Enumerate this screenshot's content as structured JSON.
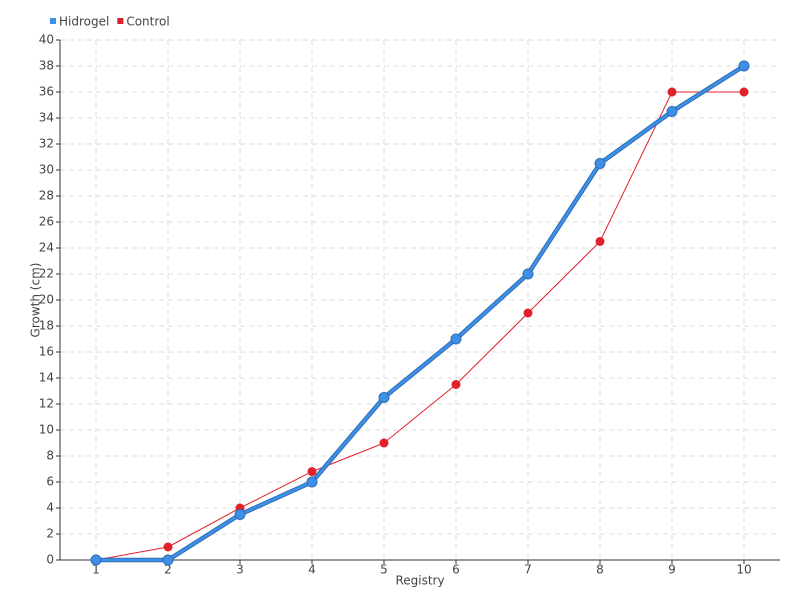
{
  "chart_data": {
    "type": "line",
    "x_label": "Registry",
    "y_label": "Growth (cm)",
    "categories": [
      "1",
      "2",
      "3",
      "4",
      "5",
      "6",
      "7",
      "8",
      "9",
      "10"
    ],
    "series": [
      {
        "name": "Hidrogel",
        "color": "#3d8fe8",
        "values": [
          0,
          0,
          3.5,
          6,
          12.5,
          17,
          22,
          30.5,
          34.5,
          38
        ]
      },
      {
        "name": "Control",
        "color": "#e0202a",
        "values": [
          0,
          1,
          4,
          6.8,
          9,
          13.5,
          19,
          24.5,
          36,
          36
        ]
      }
    ],
    "ylim": [
      0,
      40
    ],
    "yticks": [
      0,
      2,
      4,
      6,
      8,
      10,
      12,
      14,
      16,
      18,
      20,
      22,
      24,
      26,
      28,
      30,
      32,
      34,
      36,
      38,
      40
    ],
    "grid": true
  }
}
